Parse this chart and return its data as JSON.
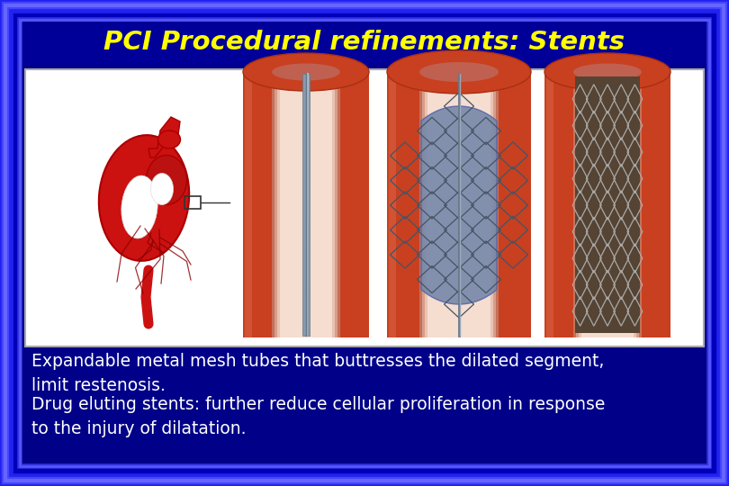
{
  "title": "PCI Procedural refinements: Stents",
  "title_color": "#FFFF00",
  "title_fontsize": 21,
  "background_color": "#0000BB",
  "inner_bg_color": "#0000AA",
  "panel_bg": "#FFFFFF",
  "text_color": "#FFFFFF",
  "bullet1": "Expandable metal mesh tubes that buttresses the dilated segment,\nlimit restenosis.",
  "bullet2": "Drug eluting stents: further reduce cellular proliferation in response\nto the injury of dilatation.",
  "text_fontsize": 13.5,
  "figsize": [
    8.1,
    5.4
  ],
  "dpi": 100,
  "artery_outer": "#C84020",
  "artery_mid": "#A83010",
  "artery_inner_wall": "#D05030",
  "artery_highlight": "#E07050",
  "lumen_color": "#F5DDD0",
  "stent1_wire": "#808090",
  "stent2_balloon": "#7788AA",
  "stent2_mesh": "#445566",
  "stent3_bg": "#554433",
  "stent3_mesh": "#AAAAAA"
}
